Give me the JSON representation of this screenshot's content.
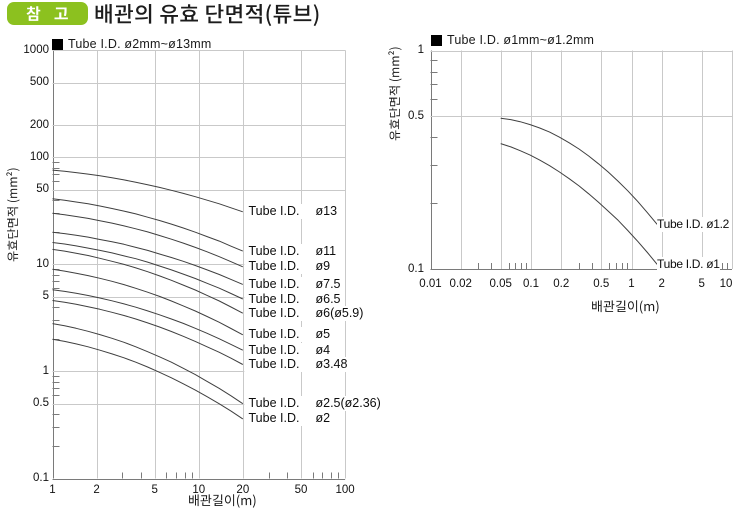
{
  "header": {
    "badge_label": "참 고",
    "title": "배관의 유효 단면적(튜브)"
  },
  "colors": {
    "badge_green": "#8cc11f",
    "curve": "#3f3f3f",
    "grid": "#c9c9c9",
    "axis": "#7a7a7a",
    "text": "#111111"
  },
  "chart_data": [
    {
      "type": "line",
      "xscale": "log",
      "yscale": "log",
      "legend": "Tube I.D. ø2mm~ø13mm",
      "xlabel": "배관길이(m)",
      "ylabel": "유효단면적 (mm²)",
      "xlim": [
        1,
        100
      ],
      "ylim": [
        0.1,
        1000
      ],
      "x_ticks": [
        "1",
        "2",
        "5",
        "10",
        "20",
        "50",
        "100"
      ],
      "y_ticks": [
        "1000",
        "500",
        "200",
        "100",
        "50",
        "10",
        "5",
        "1",
        "0.5",
        "0.1"
      ],
      "grid": "on",
      "legend_position": "top-left",
      "series_label_prefix": "Tube I.D.",
      "series": [
        {
          "name": "ø13",
          "points": [
            [
              1.0,
              76.0
            ],
            [
              1.21,
              74.2
            ],
            [
              1.45,
              72.1
            ],
            [
              1.75,
              69.7
            ],
            [
              2.11,
              67.2
            ],
            [
              2.55,
              64.5
            ],
            [
              3.08,
              61.6
            ],
            [
              3.71,
              58.6
            ],
            [
              4.47,
              55.5
            ],
            [
              5.39,
              52.4
            ],
            [
              6.5,
              49.2
            ],
            [
              7.84,
              46.1
            ],
            [
              9.46,
              42.9
            ],
            [
              11.4,
              39.8
            ],
            [
              13.8,
              36.8
            ],
            [
              16.6,
              33.8
            ],
            [
              20.0,
              31.0
            ]
          ]
        },
        {
          "name": "ø11",
          "points": [
            [
              1.0,
              41.0
            ],
            [
              1.21,
              39.8
            ],
            [
              1.45,
              38.3
            ],
            [
              1.75,
              36.8
            ],
            [
              2.11,
              35.1
            ],
            [
              2.55,
              33.3
            ],
            [
              3.08,
              31.5
            ],
            [
              3.71,
              29.6
            ],
            [
              4.47,
              27.6
            ],
            [
              5.39,
              25.7
            ],
            [
              6.5,
              23.8
            ],
            [
              7.84,
              21.9
            ],
            [
              9.46,
              20.0
            ],
            [
              11.4,
              18.2
            ],
            [
              13.8,
              16.5
            ],
            [
              16.6,
              14.8
            ],
            [
              20.0,
              13.3
            ]
          ]
        },
        {
          "name": "ø9",
          "points": [
            [
              1.0,
              30.0
            ],
            [
              1.21,
              29.1
            ],
            [
              1.45,
              28.0
            ],
            [
              1.75,
              26.9
            ],
            [
              2.11,
              25.6
            ],
            [
              2.55,
              24.3
            ],
            [
              3.08,
              22.9
            ],
            [
              3.71,
              21.5
            ],
            [
              4.47,
              20.1
            ],
            [
              5.39,
              18.6
            ],
            [
              6.5,
              17.2
            ],
            [
              7.84,
              15.8
            ],
            [
              9.46,
              14.4
            ],
            [
              11.4,
              13.1
            ],
            [
              13.8,
              11.8
            ],
            [
              16.6,
              10.6
            ],
            [
              20.0,
              9.5
            ]
          ]
        },
        {
          "name": "ø7.5",
          "points": [
            [
              1.0,
              20.0
            ],
            [
              1.21,
              19.4
            ],
            [
              1.45,
              18.7
            ],
            [
              1.75,
              18.0
            ],
            [
              2.11,
              17.1
            ],
            [
              2.55,
              16.3
            ],
            [
              3.08,
              15.4
            ],
            [
              3.71,
              14.4
            ],
            [
              4.47,
              13.5
            ],
            [
              5.39,
              12.5
            ],
            [
              6.5,
              11.6
            ],
            [
              7.84,
              10.7
            ],
            [
              9.46,
              9.77
            ],
            [
              11.4,
              8.89
            ],
            [
              13.8,
              8.05
            ],
            [
              16.6,
              7.25
            ],
            [
              20.0,
              6.5
            ]
          ]
        },
        {
          "name": "ø6.5",
          "points": [
            [
              1.0,
              16.0
            ],
            [
              1.21,
              15.5
            ],
            [
              1.45,
              14.9
            ],
            [
              1.75,
              14.2
            ],
            [
              2.11,
              13.5
            ],
            [
              2.55,
              12.8
            ],
            [
              3.08,
              12.0
            ],
            [
              3.71,
              11.3
            ],
            [
              4.47,
              10.5
            ],
            [
              5.39,
              9.67
            ],
            [
              6.5,
              8.88
            ],
            [
              7.84,
              8.12
            ],
            [
              9.46,
              7.38
            ],
            [
              11.4,
              6.66
            ],
            [
              13.8,
              5.99
            ],
            [
              16.6,
              5.35
            ],
            [
              20.0,
              4.75
            ]
          ]
        },
        {
          "name": "ø6(ø5.9)",
          "points": [
            [
              1.0,
              13.8
            ],
            [
              1.21,
              13.3
            ],
            [
              1.45,
              12.7
            ],
            [
              1.75,
              12.1
            ],
            [
              2.11,
              11.4
            ],
            [
              2.55,
              10.7
            ],
            [
              3.08,
              10.0
            ],
            [
              3.71,
              9.27
            ],
            [
              4.47,
              8.54
            ],
            [
              5.39,
              7.81
            ],
            [
              6.5,
              7.1
            ],
            [
              7.84,
              6.41
            ],
            [
              9.46,
              5.76
            ],
            [
              11.4,
              5.13
            ],
            [
              13.8,
              4.55
            ],
            [
              16.6,
              4.0
            ],
            [
              20.0,
              3.5
            ]
          ]
        },
        {
          "name": "ø5",
          "points": [
            [
              1.0,
              9.0
            ],
            [
              1.21,
              8.66
            ],
            [
              1.45,
              8.28
            ],
            [
              1.75,
              7.86
            ],
            [
              2.11,
              7.42
            ],
            [
              2.55,
              6.95
            ],
            [
              3.08,
              6.47
            ],
            [
              3.71,
              5.98
            ],
            [
              4.47,
              5.5
            ],
            [
              5.39,
              5.02
            ],
            [
              6.5,
              4.55
            ],
            [
              7.84,
              4.1
            ],
            [
              9.46,
              3.67
            ],
            [
              11.4,
              3.26
            ],
            [
              13.8,
              2.88
            ],
            [
              16.6,
              2.52
            ],
            [
              20.0,
              2.2
            ]
          ]
        },
        {
          "name": "ø4",
          "points": [
            [
              1.0,
              5.8
            ],
            [
              1.21,
              5.6
            ],
            [
              1.45,
              5.37
            ],
            [
              1.75,
              5.12
            ],
            [
              2.11,
              4.85
            ],
            [
              2.55,
              4.57
            ],
            [
              3.08,
              4.28
            ],
            [
              3.71,
              3.98
            ],
            [
              4.47,
              3.68
            ],
            [
              5.39,
              3.38
            ],
            [
              6.5,
              3.09
            ],
            [
              7.84,
              2.81
            ],
            [
              9.46,
              2.53
            ],
            [
              11.4,
              2.27
            ],
            [
              13.8,
              2.02
            ],
            [
              16.6,
              1.79
            ],
            [
              20.0,
              1.58
            ]
          ]
        },
        {
          "name": "ø3.48",
          "points": [
            [
              1.0,
              4.6
            ],
            [
              1.21,
              4.43
            ],
            [
              1.45,
              4.24
            ],
            [
              1.75,
              4.03
            ],
            [
              2.11,
              3.81
            ],
            [
              2.55,
              3.57
            ],
            [
              3.08,
              3.33
            ],
            [
              3.71,
              3.09
            ],
            [
              4.47,
              2.84
            ],
            [
              5.39,
              2.6
            ],
            [
              6.5,
              2.36
            ],
            [
              7.84,
              2.13
            ],
            [
              9.46,
              1.91
            ],
            [
              11.4,
              1.7
            ],
            [
              13.8,
              1.51
            ],
            [
              16.6,
              1.33
            ],
            [
              20.0,
              1.16
            ]
          ]
        },
        {
          "name": "ø2.5(ø2.36)",
          "points": [
            [
              1.0,
              2.8
            ],
            [
              1.21,
              2.67
            ],
            [
              1.45,
              2.53
            ],
            [
              1.75,
              2.37
            ],
            [
              2.11,
              2.21
            ],
            [
              2.55,
              2.04
            ],
            [
              3.08,
              1.87
            ],
            [
              3.71,
              1.7
            ],
            [
              4.47,
              1.53
            ],
            [
              5.39,
              1.37
            ],
            [
              6.5,
              1.22
            ],
            [
              7.84,
              1.07
            ],
            [
              9.46,
              0.934
            ],
            [
              11.4,
              0.808
            ],
            [
              13.8,
              0.694
            ],
            [
              16.6,
              0.592
            ],
            [
              20.0,
              0.5
            ]
          ]
        },
        {
          "name": "ø2",
          "points": [
            [
              1.0,
              2.0
            ],
            [
              1.21,
              1.91
            ],
            [
              1.45,
              1.81
            ],
            [
              1.75,
              1.7
            ],
            [
              2.11,
              1.58
            ],
            [
              2.55,
              1.46
            ],
            [
              3.08,
              1.34
            ],
            [
              3.71,
              1.22
            ],
            [
              4.47,
              1.1
            ],
            [
              5.39,
              0.982
            ],
            [
              6.5,
              0.872
            ],
            [
              7.84,
              0.767
            ],
            [
              9.46,
              0.67
            ],
            [
              11.4,
              0.581
            ],
            [
              13.8,
              0.499
            ],
            [
              16.6,
              0.426
            ],
            [
              20.0,
              0.36
            ]
          ]
        }
      ]
    },
    {
      "type": "line",
      "xscale": "log",
      "yscale": "log",
      "legend": "Tube I.D. ø1mm~ø1.2mm",
      "xlabel": "배관길이(m)",
      "ylabel": "유효단면적 (mm²)",
      "xlim": [
        0.01,
        10
      ],
      "ylim": [
        0.1,
        1
      ],
      "x_ticks": [
        "0.01",
        "0.02",
        "0.05",
        "0.1",
        "0.2",
        "0.5",
        "1",
        "2",
        "5",
        "10"
      ],
      "y_ticks": [
        "1",
        "0.5",
        "0.1"
      ],
      "grid": "on",
      "legend_position": "top-left",
      "series_label_prefix": "Tube I.D.",
      "series": [
        {
          "name": "ø1.2",
          "points": [
            [
              0.05,
              0.49
            ],
            [
              0.063,
              0.483
            ],
            [
              0.078,
              0.472
            ],
            [
              0.098,
              0.458
            ],
            [
              0.122,
              0.442
            ],
            [
              0.153,
              0.423
            ],
            [
              0.192,
              0.401
            ],
            [
              0.24,
              0.378
            ],
            [
              0.3,
              0.354
            ],
            [
              0.375,
              0.329
            ],
            [
              0.47,
              0.303
            ],
            [
              0.587,
              0.278
            ],
            [
              0.735,
              0.252
            ],
            [
              0.919,
              0.228
            ],
            [
              1.15,
              0.204
            ],
            [
              1.44,
              0.181
            ],
            [
              1.8,
              0.16
            ]
          ]
        },
        {
          "name": "ø1",
          "points": [
            [
              0.05,
              0.375
            ],
            [
              0.063,
              0.362
            ],
            [
              0.078,
              0.348
            ],
            [
              0.098,
              0.332
            ],
            [
              0.122,
              0.315
            ],
            [
              0.153,
              0.297
            ],
            [
              0.192,
              0.278
            ],
            [
              0.24,
              0.259
            ],
            [
              0.3,
              0.24
            ],
            [
              0.375,
              0.221
            ],
            [
              0.47,
              0.202
            ],
            [
              0.587,
              0.184
            ],
            [
              0.735,
              0.167
            ],
            [
              0.919,
              0.15
            ],
            [
              1.15,
              0.134
            ],
            [
              1.44,
              0.119
            ],
            [
              1.8,
              0.105
            ]
          ]
        }
      ]
    }
  ]
}
